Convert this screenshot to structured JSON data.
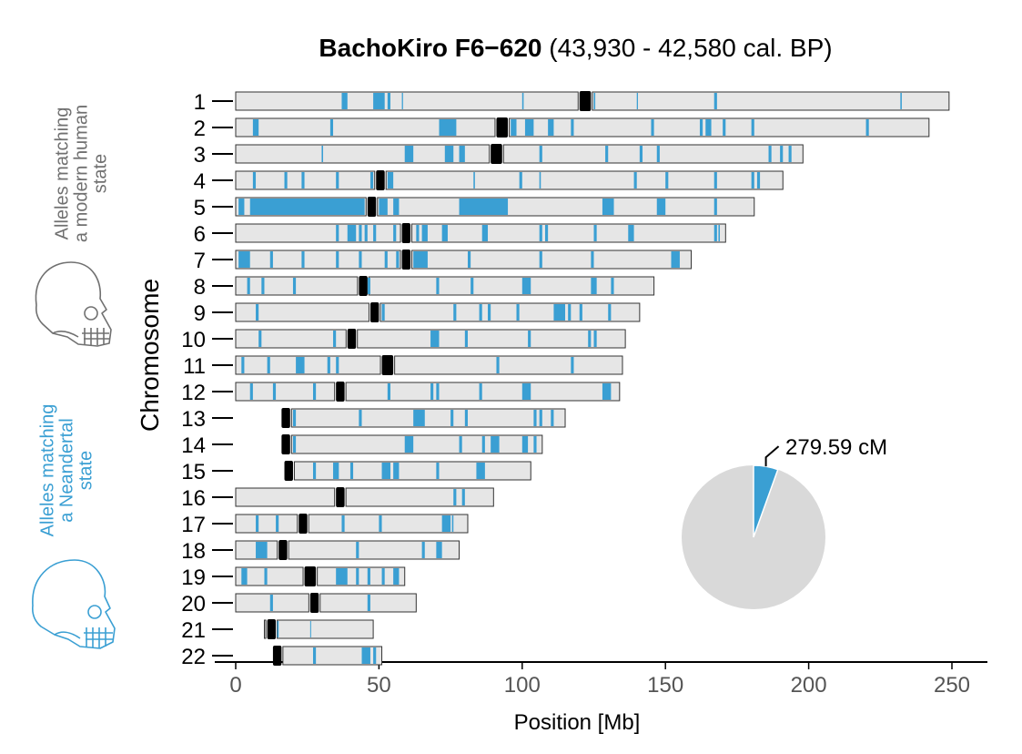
{
  "chart_data": {
    "type": "ideogram",
    "title": "BachoKiro F6−620",
    "subtitle": "(43,930 - 42,580 cal. BP)",
    "xlabel": "Position [Mb]",
    "ylabel": "Chromosome",
    "xlim": [
      0,
      260
    ],
    "xticks": [
      0,
      50,
      100,
      150,
      200,
      250
    ],
    "legend": {
      "modern": "Alleles matching\na modern human\nstate",
      "neanderthal": "Alleles matching\na Neandertal\nstate"
    },
    "pie": {
      "label": "279.59 cM",
      "fraction": 0.055
    },
    "colors": {
      "neanderthal": "#3a9fd3",
      "modern": "#707070",
      "chrom_fill": "#e6e6e6",
      "centromere": "#000000",
      "pie_rest": "#d9d9d9"
    },
    "chromosomes": [
      {
        "label": "1",
        "start": 0,
        "end": 249,
        "cen": [
          120,
          124
        ],
        "segs": [
          [
            37,
            39
          ],
          [
            48,
            52
          ],
          [
            53,
            54
          ],
          [
            58,
            58.4
          ],
          [
            100,
            100.5
          ],
          [
            125,
            125.5
          ],
          [
            140,
            140.4
          ],
          [
            167,
            168
          ],
          [
            232,
            232.5
          ]
        ]
      },
      {
        "label": "2",
        "start": 0,
        "end": 242,
        "cen": [
          91,
          95
        ],
        "segs": [
          [
            6,
            8
          ],
          [
            33,
            34
          ],
          [
            71,
            77
          ],
          [
            96,
            98
          ],
          [
            101,
            104
          ],
          [
            109,
            111
          ],
          [
            117,
            118
          ],
          [
            145,
            146
          ],
          [
            162,
            163
          ],
          [
            164,
            166
          ],
          [
            170,
            171
          ],
          [
            180,
            181
          ],
          [
            220,
            221
          ]
        ]
      },
      {
        "label": "3",
        "start": 0,
        "end": 198,
        "cen": [
          89,
          93
        ],
        "segs": [
          [
            30,
            30.5
          ],
          [
            59,
            62
          ],
          [
            73,
            76
          ],
          [
            78,
            80
          ],
          [
            106,
            107
          ],
          [
            129,
            130
          ],
          [
            141,
            142
          ],
          [
            147,
            148
          ],
          [
            186,
            187
          ],
          [
            190,
            191
          ],
          [
            193,
            194
          ]
        ]
      },
      {
        "label": "4",
        "start": 0,
        "end": 191,
        "cen": [
          49,
          52
        ],
        "segs": [
          [
            6,
            7
          ],
          [
            17,
            18
          ],
          [
            23,
            24
          ],
          [
            35,
            36
          ],
          [
            47,
            48
          ],
          [
            53,
            55
          ],
          [
            83,
            83.5
          ],
          [
            99,
            100
          ],
          [
            106,
            106.5
          ],
          [
            139,
            140
          ],
          [
            150,
            151
          ],
          [
            167,
            168
          ],
          [
            180,
            181
          ],
          [
            182,
            183
          ]
        ]
      },
      {
        "label": "5",
        "start": 0,
        "end": 181,
        "cen": [
          46,
          49
        ],
        "segs": [
          [
            1,
            3
          ],
          [
            5,
            45
          ],
          [
            50,
            53
          ],
          [
            55,
            57
          ],
          [
            78,
            95
          ],
          [
            128,
            132
          ],
          [
            147,
            150
          ],
          [
            167,
            168
          ]
        ]
      },
      {
        "label": "6",
        "start": 0,
        "end": 171,
        "cen": [
          58,
          61
        ],
        "segs": [
          [
            35,
            36
          ],
          [
            39,
            42
          ],
          [
            43,
            44
          ],
          [
            45,
            46
          ],
          [
            48,
            49
          ],
          [
            55,
            56
          ],
          [
            63,
            64
          ],
          [
            65,
            67
          ],
          [
            72,
            74
          ],
          [
            86,
            88
          ],
          [
            106,
            107
          ],
          [
            108,
            109
          ],
          [
            125,
            126
          ],
          [
            137,
            139
          ],
          [
            167,
            168
          ],
          [
            168.5,
            169
          ]
        ]
      },
      {
        "label": "7",
        "start": 0,
        "end": 159,
        "cen": [
          58,
          61
        ],
        "segs": [
          [
            1,
            5
          ],
          [
            12,
            13
          ],
          [
            23,
            24
          ],
          [
            35,
            36
          ],
          [
            43,
            44
          ],
          [
            52,
            53
          ],
          [
            56,
            57
          ],
          [
            62,
            67
          ],
          [
            81,
            82
          ],
          [
            106,
            107
          ],
          [
            124,
            125
          ],
          [
            152,
            155
          ]
        ]
      },
      {
        "label": "8",
        "start": 0,
        "end": 146,
        "cen": [
          43,
          46
        ],
        "segs": [
          [
            4,
            5
          ],
          [
            9,
            10
          ],
          [
            20,
            21
          ],
          [
            46,
            47
          ],
          [
            70,
            71
          ],
          [
            82,
            83
          ],
          [
            100,
            103
          ],
          [
            124,
            126
          ],
          [
            131,
            132
          ]
        ]
      },
      {
        "label": "9",
        "start": 0,
        "end": 141,
        "cen": [
          47,
          50
        ],
        "segs": [
          [
            7,
            8
          ],
          [
            51,
            52
          ],
          [
            76,
            77
          ],
          [
            85,
            86
          ],
          [
            88,
            89
          ],
          [
            98,
            99
          ],
          [
            111,
            115
          ],
          [
            116,
            117
          ],
          [
            120,
            121
          ],
          [
            130,
            131
          ]
        ]
      },
      {
        "label": "10",
        "start": 0,
        "end": 136,
        "cen": [
          39,
          42
        ],
        "segs": [
          [
            8,
            9
          ],
          [
            34,
            35
          ],
          [
            68,
            71
          ],
          [
            80,
            81
          ],
          [
            102,
            103
          ],
          [
            123,
            124
          ],
          [
            125,
            126
          ]
        ]
      },
      {
        "label": "11",
        "start": 0,
        "end": 135,
        "cen": [
          51,
          55
        ],
        "segs": [
          [
            2,
            3
          ],
          [
            11,
            12
          ],
          [
            21,
            24
          ],
          [
            32,
            33
          ],
          [
            35,
            36
          ],
          [
            91,
            92
          ],
          [
            117,
            118
          ]
        ]
      },
      {
        "label": "12",
        "start": 0,
        "end": 134,
        "cen": [
          35,
          38
        ],
        "segs": [
          [
            5,
            6
          ],
          [
            13,
            14
          ],
          [
            27,
            28
          ],
          [
            53,
            54
          ],
          [
            68,
            69
          ],
          [
            70,
            71
          ],
          [
            85,
            86
          ],
          [
            100,
            103
          ],
          [
            128,
            131
          ]
        ]
      },
      {
        "label": "13",
        "start": 16,
        "end": 115,
        "cen": [
          16,
          19
        ],
        "segs": [
          [
            20,
            21
          ],
          [
            43,
            44
          ],
          [
            62,
            66
          ],
          [
            75,
            76
          ],
          [
            80,
            81
          ],
          [
            104,
            105
          ],
          [
            106,
            107
          ],
          [
            110,
            111
          ]
        ]
      },
      {
        "label": "14",
        "start": 16,
        "end": 107,
        "cen": [
          16,
          19
        ],
        "segs": [
          [
            20,
            21
          ],
          [
            59,
            62
          ],
          [
            78,
            79
          ],
          [
            86,
            87
          ],
          [
            89,
            92
          ],
          [
            100,
            102
          ],
          [
            104,
            105
          ]
        ]
      },
      {
        "label": "15",
        "start": 17,
        "end": 103,
        "cen": [
          17,
          20
        ],
        "segs": [
          [
            27,
            28
          ],
          [
            34,
            36
          ],
          [
            40,
            41
          ],
          [
            51,
            54
          ],
          [
            55,
            57
          ],
          [
            70,
            71
          ],
          [
            84,
            87
          ]
        ]
      },
      {
        "label": "16",
        "start": 0,
        "end": 90,
        "cen": [
          35,
          38
        ],
        "segs": [
          [
            76,
            77
          ],
          [
            79,
            80
          ]
        ]
      },
      {
        "label": "17",
        "start": 0,
        "end": 81,
        "cen": [
          22,
          25
        ],
        "segs": [
          [
            7,
            8
          ],
          [
            14,
            15
          ],
          [
            37,
            38
          ],
          [
            50,
            51
          ],
          [
            72,
            75
          ],
          [
            75.5,
            76
          ]
        ]
      },
      {
        "label": "18",
        "start": 0,
        "end": 78,
        "cen": [
          15,
          18
        ],
        "segs": [
          [
            7,
            11
          ],
          [
            42,
            43
          ],
          [
            65,
            66
          ],
          [
            70,
            72
          ]
        ]
      },
      {
        "label": "19",
        "start": 0,
        "end": 59,
        "cen": [
          24,
          28
        ],
        "segs": [
          [
            2,
            4
          ],
          [
            10,
            11
          ],
          [
            35,
            39
          ],
          [
            42,
            43
          ],
          [
            46,
            47
          ],
          [
            51,
            52
          ],
          [
            55,
            57
          ]
        ]
      },
      {
        "label": "20",
        "start": 0,
        "end": 63,
        "cen": [
          26,
          29
        ],
        "segs": [
          [
            12,
            13
          ],
          [
            46,
            47
          ]
        ]
      },
      {
        "label": "21",
        "start": 10,
        "end": 48,
        "cen": [
          11,
          14
        ],
        "segs": [
          [
            14.5,
            15
          ],
          [
            26,
            26.3
          ]
        ]
      },
      {
        "label": "22",
        "start": 13,
        "end": 51,
        "cen": [
          13,
          16
        ],
        "segs": [
          [
            27,
            28
          ],
          [
            44,
            47
          ],
          [
            48,
            49
          ]
        ]
      }
    ]
  }
}
